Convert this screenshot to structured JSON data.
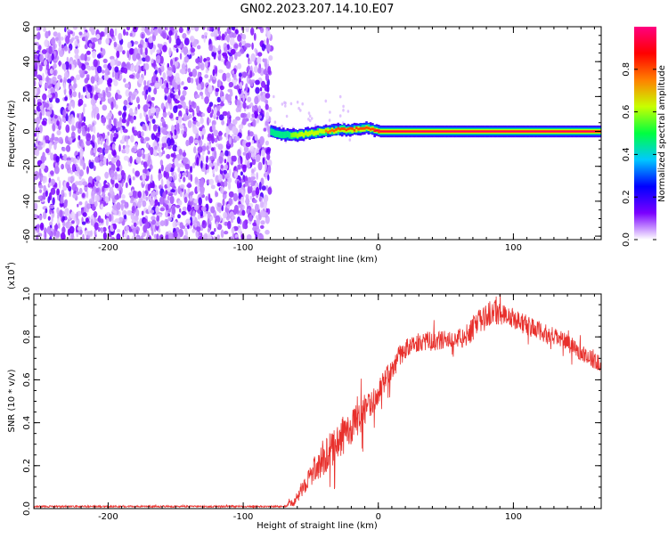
{
  "figure_title": "GN02.2023.207.14.10.E07",
  "chart_data": [
    {
      "type": "heatmap",
      "title": "",
      "xlabel": "Height of straight line (km)",
      "ylabel": "Frequency (Hz)",
      "xlim": [
        -255,
        165
      ],
      "ylim": [
        -62,
        60
      ],
      "x_ticks": [
        -200,
        -100,
        0,
        100
      ],
      "x_tick_labels": [
        "-200",
        "-100",
        "0",
        "100"
      ],
      "y_ticks": [
        -60,
        -40,
        -20,
        0,
        20,
        40,
        60
      ],
      "y_tick_labels": [
        "-60",
        "-40",
        "-20",
        "0",
        "20",
        "40",
        "60"
      ],
      "colorbar": {
        "label": "Normalized spectral amplitude",
        "range": [
          0,
          1
        ],
        "ticks": [
          0.0,
          0.2,
          0.4,
          0.6,
          0.8
        ],
        "tick_labels": [
          "0.0",
          "0.2",
          "0.4",
          "0.6",
          "0.8"
        ],
        "colormap": [
          "#ffffff",
          "#7a00ff",
          "#0000ff",
          "#00c8ff",
          "#00ff40",
          "#c8ff00",
          "#ff8000",
          "#ff0000",
          "#ff0080"
        ]
      },
      "noise_region": {
        "x_range": [
          -255,
          -80
        ],
        "freq_range": [
          -62,
          60
        ],
        "amplitude": "low (0.0-0.2)"
      },
      "signal_track": [
        {
          "x": -80,
          "freq": 0,
          "amplitude": 0.5
        },
        {
          "x": -70,
          "freq": -2,
          "amplitude": 0.55
        },
        {
          "x": -60,
          "freq": -2,
          "amplitude": 0.6
        },
        {
          "x": -50,
          "freq": -1,
          "amplitude": 0.7
        },
        {
          "x": -40,
          "freq": 0,
          "amplitude": 0.75
        },
        {
          "x": -30,
          "freq": 1,
          "amplitude": 0.8
        },
        {
          "x": -20,
          "freq": 1,
          "amplitude": 0.85
        },
        {
          "x": -10,
          "freq": 2,
          "amplitude": 0.9
        },
        {
          "x": 0,
          "freq": 0,
          "amplitude": 0.95
        },
        {
          "x": 50,
          "freq": 0,
          "amplitude": 1.0
        },
        {
          "x": 100,
          "freq": 0,
          "amplitude": 1.0
        },
        {
          "x": 165,
          "freq": 0,
          "amplitude": 1.0
        }
      ]
    },
    {
      "type": "line",
      "title": "",
      "xlabel": "Height of straight line (km)",
      "ylabel": "SNR (10 * v/v)",
      "y_scale_label": "(x10",
      "y_scale_exponent": "4",
      "y_scale_suffix": ")",
      "xlim": [
        -255,
        165
      ],
      "ylim": [
        0,
        1.0
      ],
      "x_ticks": [
        -200,
        -100,
        0,
        100
      ],
      "x_tick_labels": [
        "-200",
        "-100",
        "0",
        "100"
      ],
      "y_ticks": [
        0.0,
        0.2,
        0.4,
        0.6,
        0.8,
        1.0
      ],
      "y_tick_labels": [
        "0.0",
        "0.2",
        "0.4",
        "0.6",
        "0.8",
        "1.0"
      ],
      "series": [
        {
          "color": "#e8302c",
          "x": [
            -255,
            -200,
            -150,
            -100,
            -70,
            -62,
            -55,
            -45,
            -35,
            -25,
            -15,
            -5,
            5,
            15,
            25,
            35,
            45,
            55,
            65,
            75,
            85,
            95,
            105,
            115,
            125,
            135,
            145,
            155,
            165
          ],
          "y": [
            0.01,
            0.01,
            0.01,
            0.01,
            0.01,
            0.03,
            0.11,
            0.2,
            0.27,
            0.35,
            0.41,
            0.49,
            0.6,
            0.71,
            0.77,
            0.78,
            0.78,
            0.79,
            0.8,
            0.87,
            0.92,
            0.9,
            0.87,
            0.84,
            0.81,
            0.79,
            0.75,
            0.71,
            0.67
          ],
          "noise": [
            0.004,
            0.004,
            0.004,
            0.004,
            0.004,
            0.02,
            0.04,
            0.07,
            0.09,
            0.09,
            0.08,
            0.06,
            0.05,
            0.05,
            0.045,
            0.045,
            0.045,
            0.045,
            0.05,
            0.06,
            0.06,
            0.05,
            0.05,
            0.045,
            0.045,
            0.04,
            0.04,
            0.04,
            0.04
          ]
        }
      ]
    }
  ]
}
